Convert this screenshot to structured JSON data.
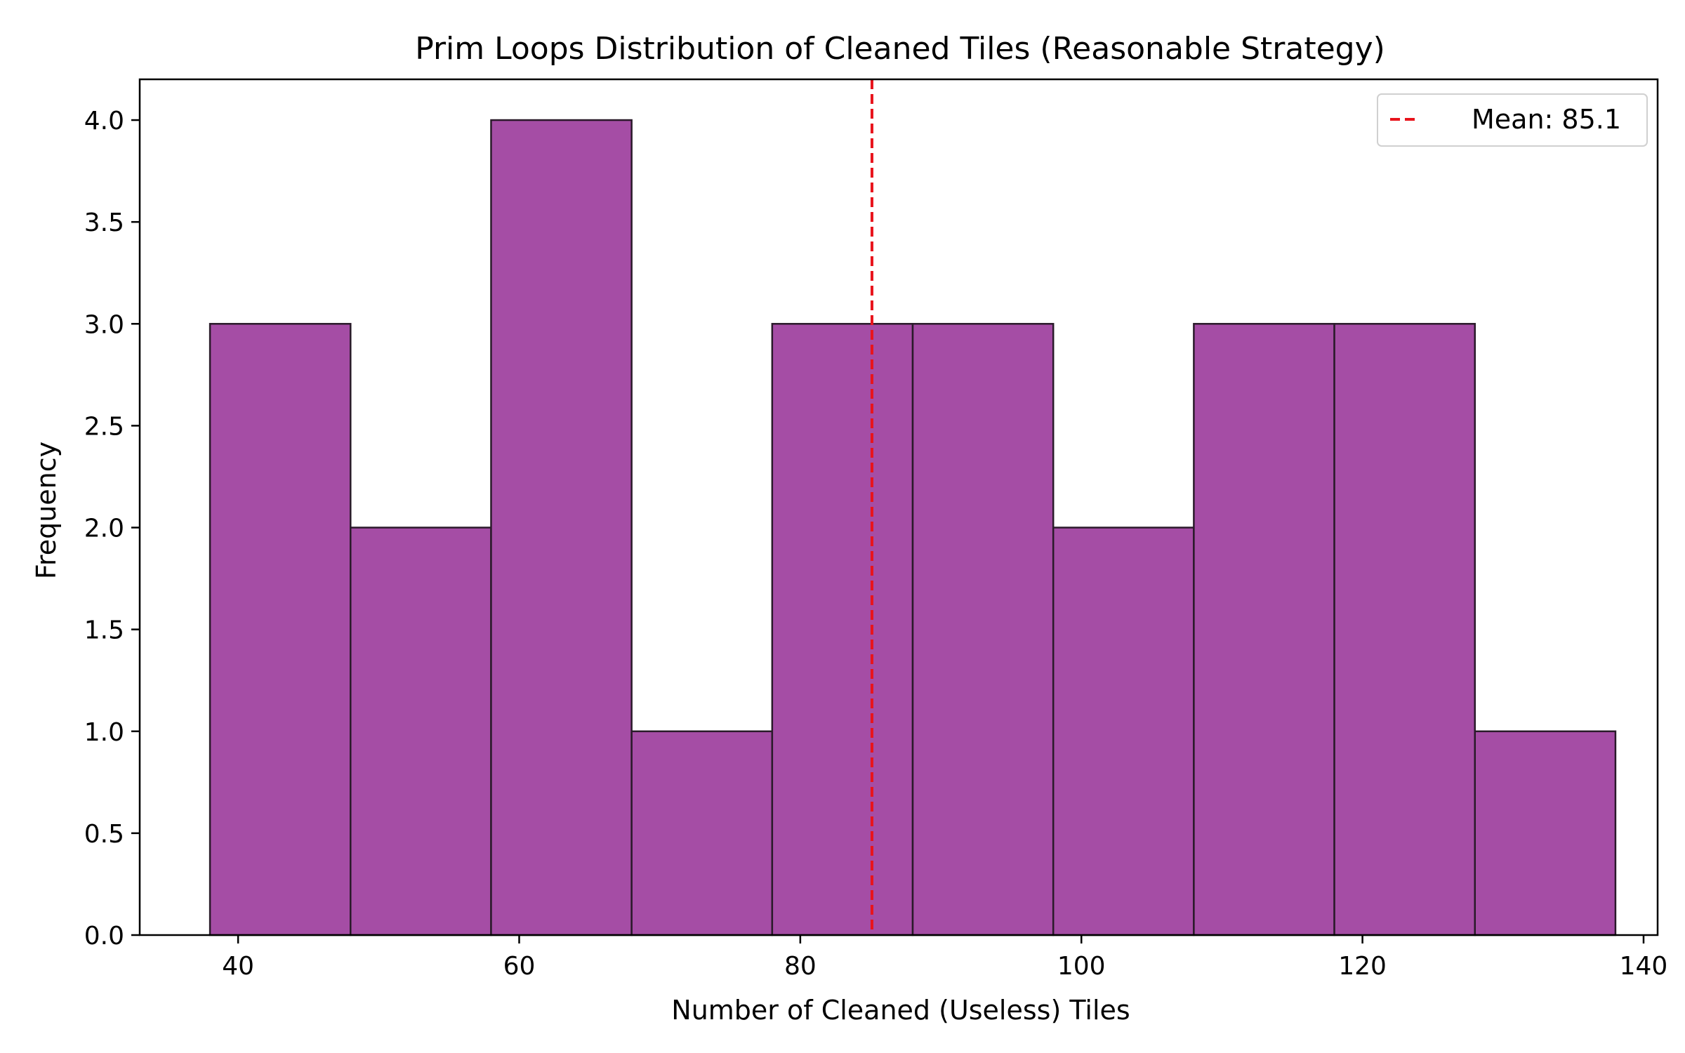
{
  "chart_data": {
    "type": "bar",
    "title": "Prim Loops Distribution of Cleaned Tiles (Reasonable Strategy)",
    "xlabel": "Number of Cleaned (Useless) Tiles",
    "ylabel": "Frequency",
    "bin_edges": [
      38,
      48,
      58,
      68,
      78,
      88,
      98,
      108,
      118,
      128,
      138
    ],
    "values": [
      3,
      2,
      4,
      1,
      3,
      3,
      2,
      3,
      3,
      1
    ],
    "xlim": [
      33,
      141
    ],
    "ylim": [
      0,
      4.2
    ],
    "x_ticks": [
      40,
      60,
      80,
      100,
      120,
      140
    ],
    "y_ticks": [
      0.0,
      0.5,
      1.0,
      1.5,
      2.0,
      2.5,
      3.0,
      3.5,
      4.0
    ],
    "x_tick_labels": [
      "40",
      "60",
      "80",
      "100",
      "120",
      "140"
    ],
    "y_tick_labels": [
      "0.0",
      "0.5",
      "1.0",
      "1.5",
      "2.0",
      "2.5",
      "3.0",
      "3.5",
      "4.0"
    ],
    "mean": 85.1,
    "legend": {
      "entries": [
        "Mean: 85.1"
      ],
      "position": "upper right"
    },
    "grid": false,
    "colors": {
      "bar_fill": "#a54da5",
      "bar_edge": "#2a1a2a",
      "mean_line": "#e8141c"
    }
  }
}
